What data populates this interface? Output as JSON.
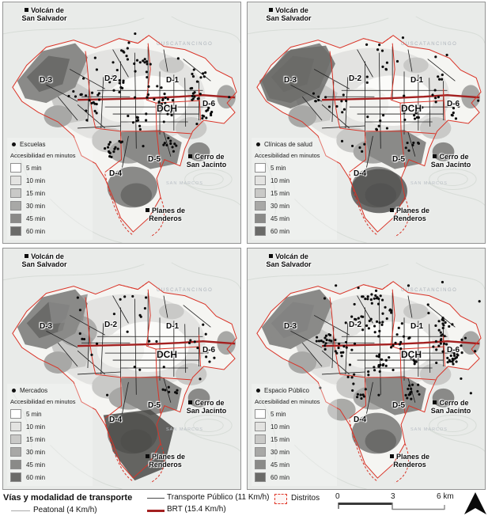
{
  "panels": [
    {
      "id": "escuelas",
      "facility_label": "Escuelas",
      "seed": 11,
      "point_count": 150
    },
    {
      "id": "clinicas",
      "facility_label": "Clínicas de salud",
      "seed": 23,
      "point_count": 72
    },
    {
      "id": "mercados",
      "facility_label": "Mercados",
      "seed": 37,
      "point_count": 40
    },
    {
      "id": "espacio",
      "facility_label": "Espacio Público",
      "seed": 51,
      "point_count": 205
    }
  ],
  "access_legend_title": "Accesibilidad en minutos",
  "access_classes": [
    {
      "label": "5 min",
      "color": "#ffffff"
    },
    {
      "label": "10 min",
      "color": "#e3e3e1"
    },
    {
      "label": "15 min",
      "color": "#c9c9c7"
    },
    {
      "label": "30 min",
      "color": "#a8a8a6"
    },
    {
      "label": "45 min",
      "color": "#8a8a88"
    },
    {
      "label": "60 min",
      "color": "#6b6b69"
    }
  ],
  "map_labels": {
    "volcano_line1": "Volcán de",
    "volcano_line2": "San Salvador",
    "cerro_line1": "Cerro de",
    "cerro_line2": "San Jacinto",
    "planes_line1": "Planes de",
    "planes_line2": "Renderos",
    "districts": [
      "D-3",
      "D-2",
      "D-1",
      "DCH",
      "D-6",
      "D-5",
      "D-4"
    ],
    "basemap_neighbor": "CUSCATANCINGO",
    "basemap_south": "SAN MARCOS"
  },
  "transport_legend": {
    "title": "Vías y modalidad de transporte",
    "peatonal": "Peatonal (4 Km/h)",
    "publico": "Transporte Público (11 Km/h)",
    "brt": "BRT (15.4  Km/h)",
    "distritos": "Distritos"
  },
  "scalebar": {
    "t0": "0",
    "t1": "3",
    "t2": "6 km"
  },
  "colors": {
    "district_red": "#d93327",
    "brt_red": "#a32020",
    "road_black": "#1c1c1c",
    "basemap": "#e9ebe9",
    "muni_fill": "#f5f5f2"
  }
}
